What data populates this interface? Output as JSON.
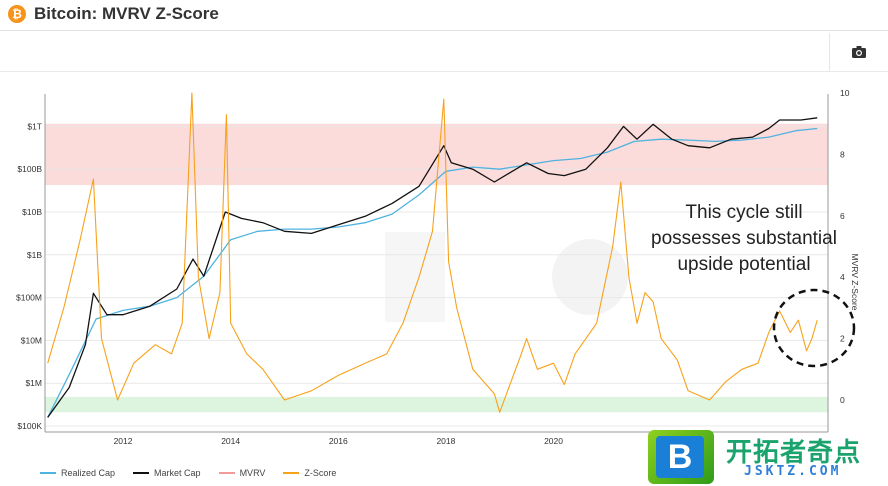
{
  "header": {
    "title": "Bitcoin: MVRV Z-Score",
    "logo_glyph": "₿"
  },
  "toolbar": {
    "camera_icon": "camera-icon"
  },
  "annotation": {
    "lines": [
      "This cycle still",
      "possesses substantial",
      "upside potential"
    ]
  },
  "watermark": {
    "title": "开拓者奇点",
    "url": "JSKTZ.COM",
    "logo_letter": "B"
  },
  "colors": {
    "realized": "#4fb3e0",
    "market": "#111111",
    "mvrv": "#f29a9a",
    "zscore": "#f7a21b",
    "red_band": "#fbd5d5",
    "green_band": "#d9f3dc"
  },
  "chart_data": {
    "type": "line",
    "title": "Bitcoin: MVRV Z-Score",
    "x_ticks": [
      "2012",
      "2014",
      "2016",
      "2018",
      "2020",
      "2"
    ],
    "y_left": {
      "scale": "log",
      "ticks": [
        "$1T",
        "$100B",
        "$10B",
        "$1B",
        "$100M",
        "$10M",
        "$1M",
        "$100K"
      ]
    },
    "y_right": {
      "label": "MVRV Z-Score",
      "ticks": [
        "10",
        "8",
        "6",
        "4",
        "2",
        "0"
      ],
      "range": [
        -1,
        10
      ]
    },
    "bands": {
      "red_zscore": [
        7,
        9
      ],
      "green_zscore": [
        -0.4,
        0.1
      ]
    },
    "legend": [
      "Realized Cap",
      "Market Cap",
      "MVRV",
      "Z-Score"
    ],
    "series": [
      {
        "name": "Realized Cap",
        "axis": "left_log10_usd",
        "x": [
          2010.6,
          2011.0,
          2011.5,
          2012.0,
          2012.5,
          2013.0,
          2013.5,
          2014.0,
          2014.5,
          2015.0,
          2015.5,
          2016.0,
          2016.5,
          2017.0,
          2017.5,
          2018.0,
          2018.5,
          2019.0,
          2019.5,
          2020.0,
          2020.5,
          2021.0,
          2021.5,
          2022.0,
          2022.5,
          2023.0,
          2023.5,
          2024.0,
          2024.5,
          2024.9
        ],
        "y": [
          5.2,
          6.2,
          7.5,
          7.7,
          7.8,
          8.0,
          8.5,
          9.35,
          9.55,
          9.6,
          9.6,
          9.65,
          9.75,
          9.95,
          10.4,
          10.95,
          11.05,
          11.0,
          11.1,
          11.2,
          11.25,
          11.4,
          11.65,
          11.7,
          11.68,
          11.65,
          11.68,
          11.75,
          11.9,
          11.95
        ]
      },
      {
        "name": "Market Cap",
        "axis": "left_log10_usd",
        "x": [
          2010.6,
          2011.0,
          2011.3,
          2011.45,
          2011.7,
          2012.0,
          2012.5,
          2013.0,
          2013.3,
          2013.5,
          2013.9,
          2014.2,
          2014.6,
          2015.0,
          2015.5,
          2016.0,
          2016.5,
          2017.0,
          2017.5,
          2017.96,
          2018.1,
          2018.5,
          2018.9,
          2019.5,
          2019.9,
          2020.2,
          2020.6,
          2021.0,
          2021.3,
          2021.55,
          2021.85,
          2022.2,
          2022.5,
          2022.9,
          2023.3,
          2023.7,
          2024.0,
          2024.2,
          2024.6,
          2024.9
        ],
        "y": [
          5.2,
          5.9,
          6.9,
          8.1,
          7.6,
          7.6,
          7.8,
          8.2,
          8.9,
          8.5,
          10.0,
          9.85,
          9.75,
          9.55,
          9.5,
          9.7,
          9.9,
          10.2,
          10.6,
          11.55,
          11.15,
          11.0,
          10.7,
          11.15,
          10.9,
          10.85,
          11.0,
          11.5,
          12.0,
          11.7,
          12.05,
          11.7,
          11.55,
          11.5,
          11.7,
          11.75,
          11.95,
          12.15,
          12.15,
          12.2
        ]
      },
      {
        "name": "Z-Score",
        "axis": "right",
        "x": [
          2010.6,
          2010.9,
          2011.2,
          2011.45,
          2011.6,
          2011.9,
          2012.2,
          2012.6,
          2012.9,
          2013.1,
          2013.28,
          2013.4,
          2013.6,
          2013.8,
          2013.92,
          2014.0,
          2014.3,
          2014.6,
          2015.0,
          2015.5,
          2016.0,
          2016.5,
          2016.9,
          2017.2,
          2017.5,
          2017.75,
          2017.96,
          2018.05,
          2018.2,
          2018.5,
          2018.9,
          2019.0,
          2019.4,
          2019.5,
          2019.7,
          2020.0,
          2020.2,
          2020.4,
          2020.8,
          2021.1,
          2021.25,
          2021.4,
          2021.55,
          2021.7,
          2021.85,
          2022.0,
          2022.3,
          2022.5,
          2022.9,
          2023.2,
          2023.5,
          2023.8,
          2024.0,
          2024.2,
          2024.4,
          2024.55,
          2024.7,
          2024.8,
          2024.9
        ],
        "y": [
          1.2,
          3.0,
          5.2,
          7.2,
          2.0,
          0.0,
          1.2,
          1.8,
          1.5,
          2.5,
          10.0,
          4.0,
          2.0,
          3.5,
          9.3,
          2.5,
          1.5,
          1.0,
          0.0,
          0.3,
          0.8,
          1.2,
          1.5,
          2.5,
          4.0,
          5.5,
          9.8,
          4.5,
          3.0,
          1.0,
          0.2,
          -0.4,
          1.5,
          2.0,
          1.0,
          1.2,
          0.5,
          1.5,
          2.5,
          5.0,
          7.1,
          4.0,
          2.5,
          3.5,
          3.2,
          2.0,
          1.3,
          0.3,
          0.0,
          0.6,
          1.0,
          1.2,
          2.2,
          2.9,
          2.2,
          2.6,
          1.6,
          2.0,
          2.6
        ]
      }
    ]
  }
}
